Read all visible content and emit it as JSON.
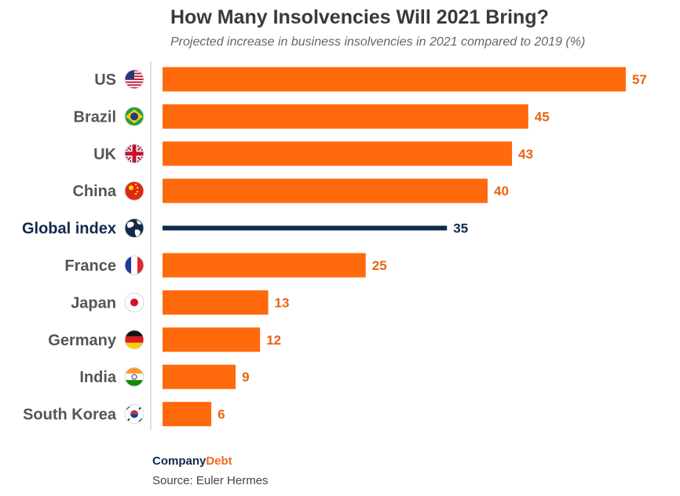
{
  "chart_data": {
    "type": "bar",
    "orientation": "horizontal",
    "title": "How Many Insolvencies Will 2021 Bring?",
    "subtitle": "Projected increase in business insolvencies in 2021 compared to 2019 (%)",
    "categories": [
      "US",
      "Brazil",
      "UK",
      "China",
      "Global index",
      "France",
      "Japan",
      "Germany",
      "India",
      "South Korea"
    ],
    "values": [
      57,
      45,
      43,
      40,
      35,
      25,
      13,
      12,
      9,
      6
    ],
    "flag_icons": [
      "us-flag-icon",
      "brazil-flag-icon",
      "uk-flag-icon",
      "china-flag-icon",
      "globe-icon",
      "france-flag-icon",
      "japan-flag-icon",
      "germany-flag-icon",
      "india-flag-icon",
      "south-korea-flag-icon"
    ],
    "highlight_category": "Global index",
    "xlim": [
      0,
      60
    ],
    "colors": {
      "bar": "#ff6a0d",
      "highlight": "#0f2a4a",
      "label": "#555555",
      "value": "#e8640f"
    }
  },
  "footer": {
    "brand_part1": "Company",
    "brand_part2": "Debt",
    "source": "Source: Euler Hermes"
  }
}
